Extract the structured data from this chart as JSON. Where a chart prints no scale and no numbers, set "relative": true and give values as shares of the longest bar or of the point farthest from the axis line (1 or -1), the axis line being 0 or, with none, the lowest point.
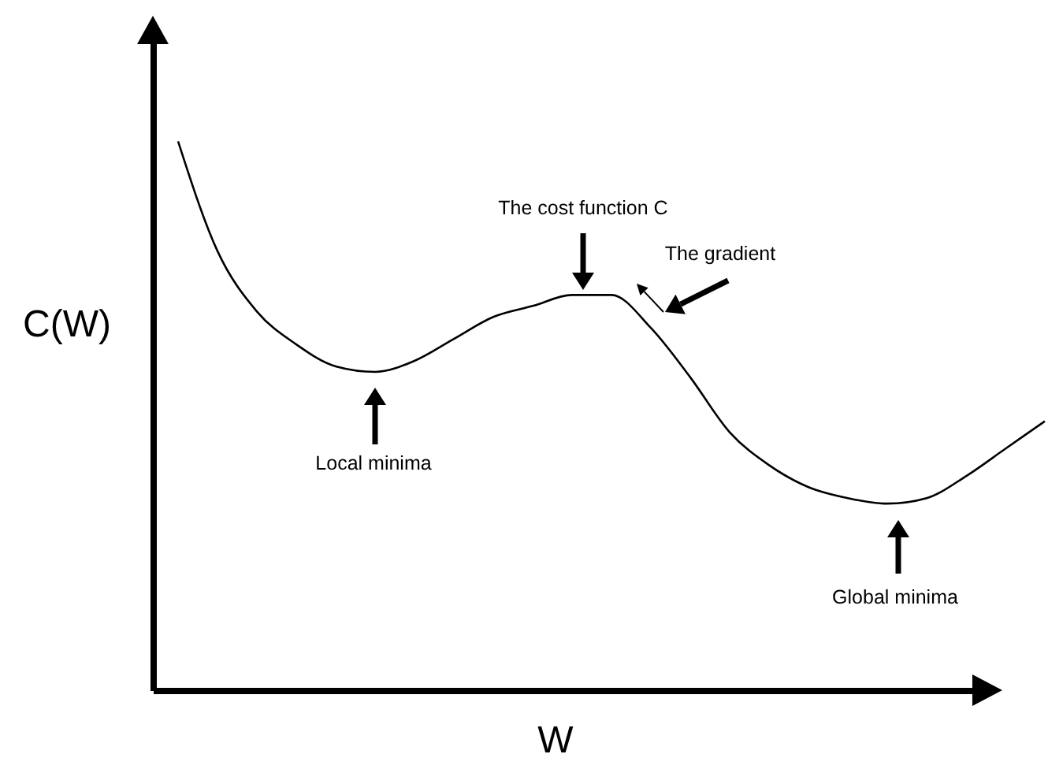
{
  "chart_data": {
    "type": "line",
    "relative": true,
    "xlabel": "W",
    "ylabel": "C(W)",
    "color": "#000000",
    "categories": [
      null,
      null,
      null,
      null,
      null,
      null,
      null,
      null,
      null,
      null,
      null,
      null,
      null,
      null,
      null,
      null,
      null,
      null,
      null,
      null,
      null,
      null,
      null
    ],
    "values": [
      1.0,
      0.8,
      0.69,
      0.63,
      0.59,
      0.58,
      0.6,
      0.64,
      0.68,
      0.7,
      0.72,
      0.72,
      0.66,
      0.57,
      0.47,
      0.41,
      0.37,
      0.35,
      0.34,
      0.35,
      0.39,
      0.44,
      0.49
    ],
    "annotations": [
      "The cost function C",
      "The gradient",
      "Local minima",
      "Global minima"
    ]
  }
}
